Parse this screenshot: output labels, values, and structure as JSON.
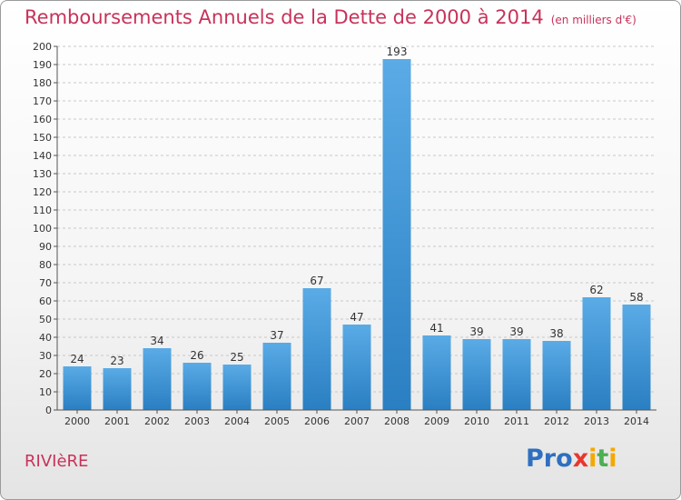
{
  "chart_data": {
    "type": "bar",
    "title": "Remboursements Annuels de la Dette de 2000 à 2014",
    "subtitle": "(en milliers d'€)",
    "categories": [
      "2000",
      "2001",
      "2002",
      "2003",
      "2004",
      "2005",
      "2006",
      "2007",
      "2008",
      "2009",
      "2010",
      "2011",
      "2012",
      "2013",
      "2014"
    ],
    "values": [
      24,
      23,
      34,
      26,
      25,
      37,
      67,
      47,
      193,
      41,
      39,
      39,
      38,
      62,
      58
    ],
    "ylim": [
      0,
      200
    ],
    "yticks": [
      0,
      10,
      20,
      30,
      40,
      50,
      60,
      70,
      80,
      90,
      100,
      110,
      120,
      130,
      140,
      150,
      160,
      170,
      180,
      190,
      200
    ],
    "grid": true,
    "data_labels": true,
    "colors": {
      "bar_light": "#5aabe6",
      "bar_dark": "#2a7fc2",
      "grid": "#c8c8c8",
      "axis": "#555555",
      "text": "#333333"
    }
  },
  "footer": {
    "place": "RIVIèRE",
    "logo": "Proxiti",
    "logo_letter_colors": [
      "#2f6fc0",
      "#2f6fc0",
      "#2f6fc0",
      "#e8372d",
      "#f5a800",
      "#4caf50",
      "#f5a800"
    ]
  }
}
